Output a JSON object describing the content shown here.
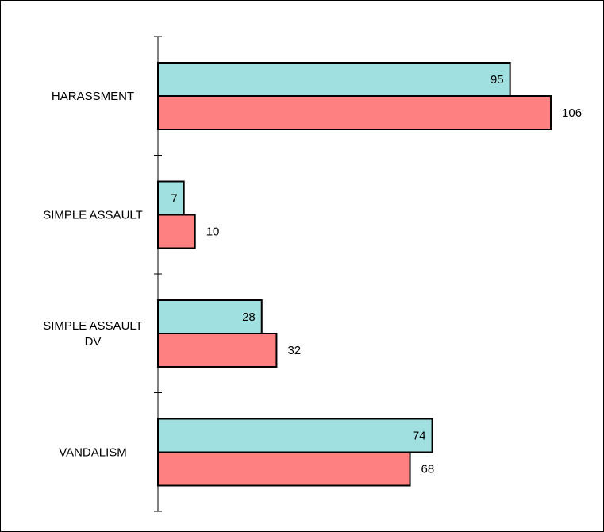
{
  "chart_data": {
    "type": "bar",
    "orientation": "horizontal",
    "categories": [
      [
        "HARASSMENT"
      ],
      [
        "SIMPLE ASSAULT"
      ],
      [
        "SIMPLE ASSAULT",
        "DV"
      ],
      [
        "VANDALISM"
      ]
    ],
    "series": [
      {
        "color": "#a0e0e0",
        "values": [
          95,
          7,
          28,
          74
        ]
      },
      {
        "color": "#ff8080",
        "values": [
          106,
          10,
          32,
          68
        ]
      }
    ],
    "xlim": [
      0,
      120
    ],
    "title": "",
    "xlabel": "",
    "ylabel": "",
    "legend": "none",
    "grid": false
  }
}
